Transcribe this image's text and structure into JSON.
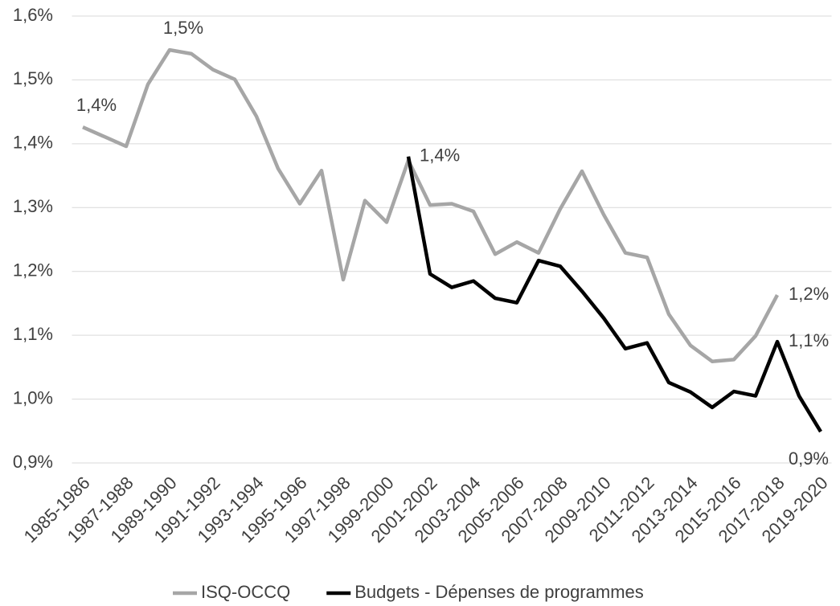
{
  "chart_data": {
    "type": "line",
    "categories": [
      "1985-1986",
      null,
      "1987-1988",
      null,
      "1989-1990",
      null,
      "1991-1992",
      null,
      "1993-1994",
      null,
      "1995-1996",
      null,
      "1997-1998",
      null,
      "1999-2000",
      null,
      "2001-2002",
      null,
      "2003-2004",
      null,
      "2005-2006",
      null,
      "2007-2008",
      null,
      "2009-2010",
      null,
      "2011-2012",
      null,
      "2013-2014",
      null,
      "2015-2016",
      null,
      "2017-2018",
      null,
      "2019-2020"
    ],
    "series": [
      {
        "name": "ISQ-OCCQ",
        "color": "#a6a6a6",
        "values": [
          1.426,
          1.411,
          1.396,
          1.493,
          1.547,
          1.541,
          1.516,
          1.501,
          1.443,
          1.361,
          1.306,
          1.358,
          1.187,
          1.311,
          1.277,
          1.374,
          1.304,
          1.306,
          1.294,
          1.227,
          1.246,
          1.229,
          1.298,
          1.357,
          1.289,
          1.229,
          1.222,
          1.133,
          1.084,
          1.059,
          1.062,
          1.099,
          1.163,
          null,
          null
        ],
        "value_labels": [
          "1,4%",
          null,
          null,
          null,
          "1,5%",
          null,
          null,
          null,
          null,
          null,
          null,
          null,
          null,
          null,
          null,
          null,
          null,
          null,
          null,
          null,
          null,
          null,
          null,
          null,
          null,
          null,
          null,
          null,
          null,
          null,
          null,
          null,
          "1,2%",
          null,
          null
        ]
      },
      {
        "name": "Budgets - Dépenses de programmes",
        "color": "#000000",
        "values": [
          null,
          null,
          null,
          null,
          null,
          null,
          null,
          null,
          null,
          null,
          null,
          null,
          null,
          null,
          null,
          1.38,
          1.196,
          1.175,
          1.185,
          1.158,
          1.151,
          1.217,
          1.208,
          1.169,
          1.127,
          1.079,
          1.088,
          1.026,
          1.011,
          0.987,
          1.012,
          1.005,
          1.09,
          1.005,
          0.949
        ],
        "value_labels": [
          null,
          null,
          null,
          null,
          null,
          null,
          null,
          null,
          null,
          null,
          null,
          null,
          null,
          null,
          null,
          "1,4%",
          null,
          null,
          null,
          null,
          null,
          null,
          null,
          null,
          null,
          null,
          null,
          null,
          null,
          null,
          null,
          null,
          "1,1%",
          null,
          "0,9%"
        ]
      }
    ],
    "ylim": [
      0.9,
      1.6
    ],
    "yticks": [
      {
        "value": 0.9,
        "label": "0,9%"
      },
      {
        "value": 1.0,
        "label": "1,0%"
      },
      {
        "value": 1.1,
        "label": "1,1%"
      },
      {
        "value": 1.2,
        "label": "1,2%"
      },
      {
        "value": 1.3,
        "label": "1,3%"
      },
      {
        "value": 1.4,
        "label": "1,4%"
      },
      {
        "value": 1.5,
        "label": "1,5%"
      },
      {
        "value": 1.6,
        "label": "1,6%"
      }
    ],
    "grid": true,
    "legend": "bottom"
  }
}
